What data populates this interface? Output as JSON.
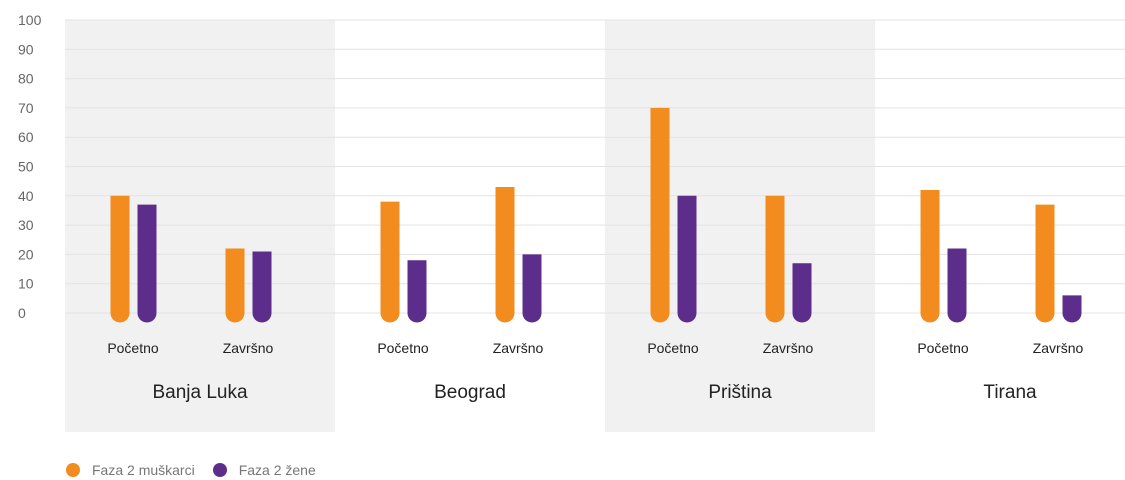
{
  "chart_data": {
    "type": "bar",
    "y_ticks": [
      "0",
      "10",
      "20",
      "30",
      "40",
      "50",
      "60",
      "70",
      "80",
      "90",
      "100"
    ],
    "ylim": [
      0,
      100
    ],
    "grid": true,
    "legend_position": "bottom-left",
    "groups": [
      {
        "name": "Banja Luka",
        "shaded": true,
        "subcategories": [
          "Početno",
          "Završno"
        ],
        "values": {
          "men": [
            40,
            22
          ],
          "women": [
            37,
            21
          ]
        }
      },
      {
        "name": "Beograd",
        "shaded": false,
        "subcategories": [
          "Početno",
          "Završno"
        ],
        "values": {
          "men": [
            38,
            43
          ],
          "women": [
            18,
            20
          ]
        }
      },
      {
        "name": "Priština",
        "shaded": true,
        "subcategories": [
          "Početno",
          "Završno"
        ],
        "values": {
          "men": [
            70,
            40
          ],
          "women": [
            40,
            17
          ]
        }
      },
      {
        "name": "Tirana",
        "shaded": false,
        "subcategories": [
          "Početno",
          "Završno"
        ],
        "values": {
          "men": [
            42,
            37
          ],
          "women": [
            22,
            6
          ]
        }
      }
    ],
    "series": [
      {
        "key": "men",
        "name": "Faza 2 muškarci",
        "color": "#f28c1f"
      },
      {
        "key": "women",
        "name": "Faza 2 žene",
        "color": "#5c2d8b"
      }
    ],
    "colors": {
      "band": "#f0f1f0",
      "grid": "#e3e3e3"
    }
  },
  "legend": {
    "items": [
      {
        "label": "Faza 2 muškarci",
        "color": "#f28c1f"
      },
      {
        "label": "Faza 2 žene",
        "color": "#5c2d8b"
      }
    ]
  }
}
